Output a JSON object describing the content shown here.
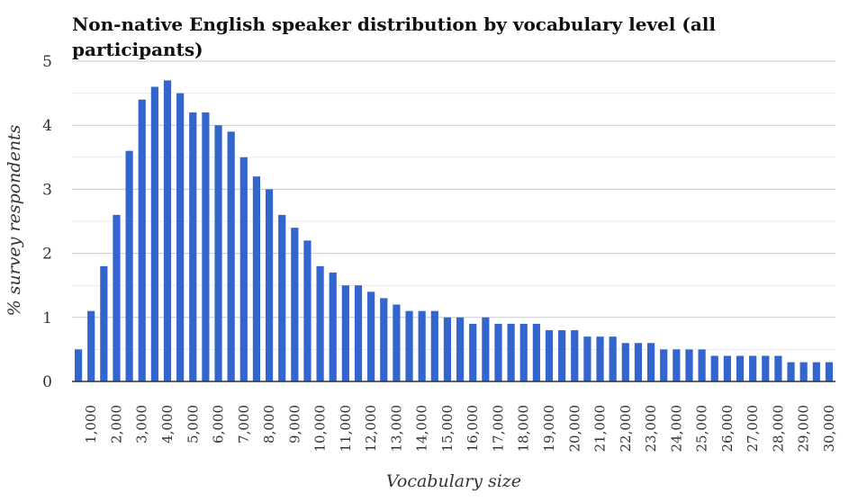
{
  "chart_data": {
    "type": "bar",
    "title_lines": [
      "Non-native English speaker distribution by vocabulary level (all",
      "participants)"
    ],
    "xlabel": "Vocabulary size",
    "ylabel": "% survey respondents",
    "ylim": [
      0,
      5
    ],
    "yticks": [
      "0",
      "1",
      "2",
      "3",
      "4",
      "5"
    ],
    "grid": true,
    "legend": "none",
    "bar_color": "#3366cc",
    "x": [
      500,
      1000,
      1500,
      2000,
      2500,
      3000,
      3500,
      4000,
      4500,
      5000,
      5500,
      6000,
      6500,
      7000,
      7500,
      8000,
      8500,
      9000,
      9500,
      10000,
      10500,
      11000,
      11500,
      12000,
      12500,
      13000,
      13500,
      14000,
      14500,
      15000,
      15500,
      16000,
      16500,
      17000,
      17500,
      18000,
      18500,
      19000,
      19500,
      20000,
      20500,
      21000,
      21500,
      22000,
      22500,
      23000,
      23500,
      24000,
      24500,
      25000,
      25500,
      26000,
      26500,
      27000,
      27500,
      28000,
      28500,
      29000,
      29500,
      30000
    ],
    "values": [
      0.5,
      1.1,
      1.8,
      2.6,
      3.6,
      4.4,
      4.6,
      4.7,
      4.5,
      4.2,
      4.2,
      4.0,
      3.9,
      3.5,
      3.2,
      3.0,
      2.6,
      2.4,
      2.2,
      1.8,
      1.7,
      1.5,
      1.5,
      1.4,
      1.3,
      1.2,
      1.1,
      1.1,
      1.1,
      1.0,
      1.0,
      0.9,
      1.0,
      0.9,
      0.9,
      0.9,
      0.9,
      0.8,
      0.8,
      0.8,
      0.7,
      0.7,
      0.7,
      0.6,
      0.6,
      0.6,
      0.5,
      0.5,
      0.5,
      0.5,
      0.4,
      0.4,
      0.4,
      0.4,
      0.4,
      0.4,
      0.3,
      0.3,
      0.3,
      0.3
    ],
    "xtick_labels": [
      "1,000",
      "2,000",
      "3,000",
      "4,000",
      "5,000",
      "6,000",
      "7,000",
      "8,000",
      "9,000",
      "10,000",
      "11,000",
      "12,000",
      "13,000",
      "14,000",
      "15,000",
      "16,000",
      "17,000",
      "18,000",
      "19,000",
      "20,000",
      "21,000",
      "22,000",
      "23,000",
      "24,000",
      "25,000",
      "26,000",
      "27,000",
      "28,000",
      "29,000",
      "30,000"
    ]
  }
}
